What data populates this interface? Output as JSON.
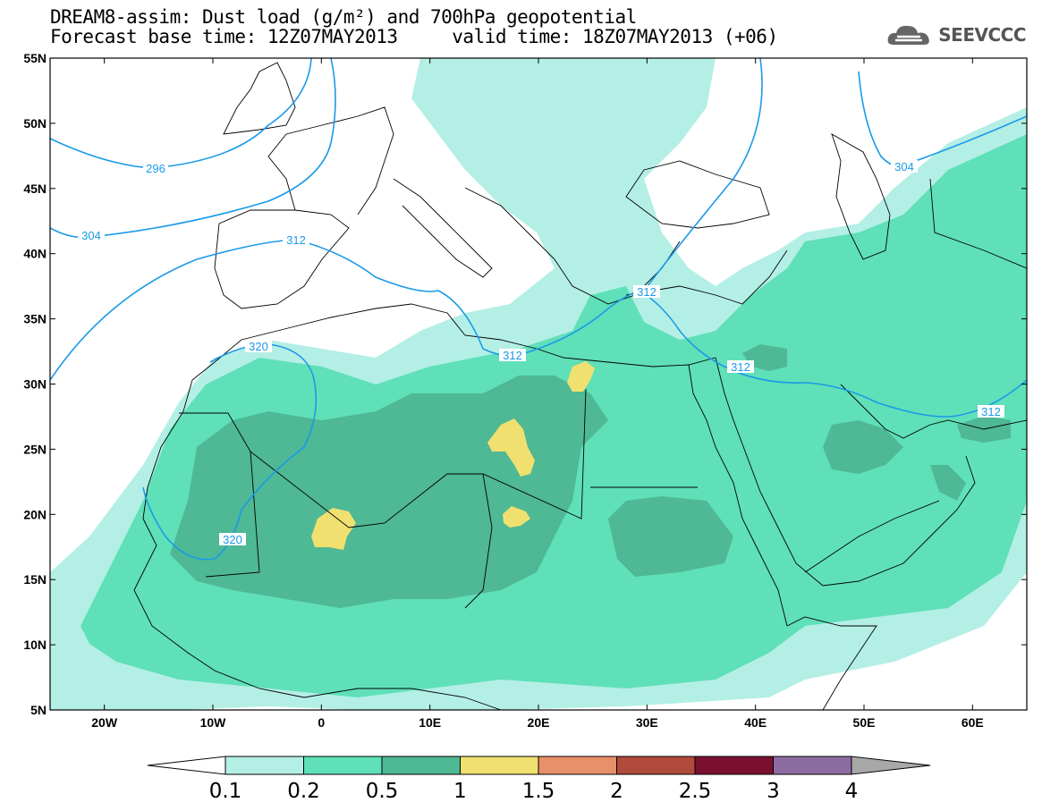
{
  "title_line1": "DREAM8-assim: Dust load (g/m²) and 700hPa geopotential",
  "title_line2": "Forecast base time: 12Z07MAY2013     valid time: 18Z07MAY2013 (+06)",
  "logo": {
    "text": "SEEVCCC",
    "icon": "cloud-logo-icon"
  },
  "map": {
    "lat_labels": [
      "55N",
      "50N",
      "45N",
      "40N",
      "35N",
      "30N",
      "25N",
      "20N",
      "15N",
      "10N",
      "5N"
    ],
    "lon_labels": [
      "20W",
      "10W",
      "0",
      "10E",
      "20E",
      "30E",
      "40E",
      "50E",
      "60E"
    ],
    "lon_range": [
      -25,
      65
    ],
    "lat_range": [
      5,
      55
    ],
    "contour_labels": [
      "296",
      "304",
      "312",
      "312",
      "312",
      "320",
      "320",
      "304",
      "312",
      "312"
    ],
    "coastline_color": "#000000",
    "contour_color": "#1a9ae8"
  },
  "colorbar": {
    "labels": [
      "0.1",
      "0.2",
      "0.5",
      "1",
      "1.5",
      "2",
      "2.5",
      "3",
      "4"
    ],
    "colors": [
      "#b4efe6",
      "#5fe0b8",
      "#4fb894",
      "#f0e070",
      "#e8906a",
      "#b04a3a",
      "#7a1030",
      "#8c6ca0"
    ],
    "under_color": "#ffffff",
    "over_color": "#a8a8a8"
  }
}
